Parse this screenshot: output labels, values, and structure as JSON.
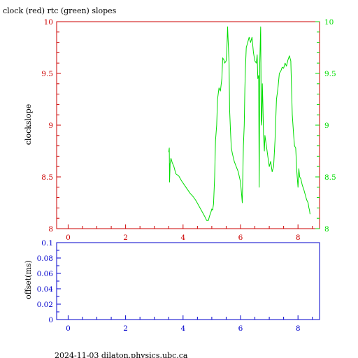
{
  "title": "clock (red) rtc (green) slopes",
  "footer": "2024-11-03  dilaton.physics.ubc.ca",
  "colors": {
    "red": "#cc0000",
    "green": "#00dd00",
    "blue": "#0000cc",
    "black": "#000000"
  },
  "chart_data": [
    {
      "type": "line",
      "ylabel": "clockslope",
      "xlim": [
        -0.4,
        8.75
      ],
      "ylim": [
        8.0,
        10.0
      ],
      "x_ticks": [
        "0",
        "2",
        "4",
        "6",
        "8"
      ],
      "y_ticks_left": [
        "8",
        "8.5",
        "9",
        "9.5",
        "10"
      ],
      "y_ticks_right": [
        "8",
        "8.5",
        "9",
        "9.5",
        "10"
      ],
      "grid": false,
      "series": [
        {
          "color": "#00dd00",
          "x": [
            3.5,
            3.52,
            3.53,
            3.55,
            3.58,
            3.62,
            3.68,
            3.75,
            3.85,
            3.95,
            4.05,
            4.15,
            4.25,
            4.35,
            4.45,
            4.55,
            4.65,
            4.75,
            4.82,
            4.88,
            4.92,
            4.97,
            5.0,
            5.03,
            5.06,
            5.1,
            5.13,
            5.17,
            5.2,
            5.25,
            5.3,
            5.35,
            5.38,
            5.42,
            5.45,
            5.5,
            5.52,
            5.55,
            5.6,
            5.62,
            5.65,
            5.68,
            5.72,
            5.78,
            5.85,
            5.92,
            6.0,
            6.06,
            6.1,
            6.13,
            6.15,
            6.17,
            6.2,
            6.25,
            6.3,
            6.35,
            6.4,
            6.45,
            6.5,
            6.55,
            6.58,
            6.6,
            6.63,
            6.65,
            6.67,
            6.7,
            6.72,
            6.74,
            6.76,
            6.78,
            6.8,
            6.83,
            6.85,
            6.9,
            6.95,
            7.0,
            7.05,
            7.1,
            7.15,
            7.2,
            7.25,
            7.3,
            7.35,
            7.4,
            7.45,
            7.5,
            7.55,
            7.6,
            7.65,
            7.7,
            7.75,
            7.8,
            7.85,
            7.88,
            7.92,
            7.96,
            8.0,
            8.03,
            8.06,
            8.1,
            8.15,
            8.2,
            8.25,
            8.3,
            8.35,
            8.38,
            8.4,
            8.42
          ],
          "y": [
            8.74,
            8.78,
            8.45,
            8.63,
            8.68,
            8.64,
            8.6,
            8.53,
            8.51,
            8.46,
            8.42,
            8.38,
            8.34,
            8.31,
            8.27,
            8.22,
            8.17,
            8.12,
            8.08,
            8.08,
            8.12,
            8.16,
            8.19,
            8.18,
            8.24,
            8.5,
            8.85,
            9.0,
            9.25,
            9.36,
            9.33,
            9.45,
            9.65,
            9.63,
            9.6,
            9.62,
            9.7,
            9.95,
            9.6,
            9.15,
            8.95,
            8.78,
            8.72,
            8.65,
            8.6,
            8.55,
            8.45,
            8.25,
            8.8,
            9.0,
            9.35,
            9.55,
            9.75,
            9.8,
            9.85,
            9.8,
            9.85,
            9.7,
            9.62,
            9.6,
            9.68,
            9.45,
            9.48,
            8.4,
            9.6,
            9.95,
            9.05,
            9.0,
            9.4,
            9.2,
            8.9,
            8.75,
            8.9,
            8.8,
            8.7,
            8.6,
            8.65,
            8.55,
            8.6,
            8.85,
            9.25,
            9.35,
            9.5,
            9.52,
            9.56,
            9.55,
            9.6,
            9.57,
            9.63,
            9.67,
            9.62,
            9.1,
            8.9,
            8.8,
            8.78,
            8.55,
            8.4,
            8.58,
            8.5,
            8.48,
            8.42,
            8.38,
            8.33,
            8.28,
            8.25,
            8.2,
            8.18,
            8.14
          ]
        }
      ]
    },
    {
      "type": "line",
      "ylabel": "offset(ms)",
      "xlim": [
        -0.4,
        8.75
      ],
      "ylim": [
        0,
        0.1
      ],
      "x_ticks": [
        "0",
        "2",
        "4",
        "6",
        "8"
      ],
      "y_ticks_left": [
        "0",
        "0.02",
        "0.04",
        "0.06",
        "0.08",
        "0.1"
      ],
      "grid": false,
      "series": []
    }
  ]
}
